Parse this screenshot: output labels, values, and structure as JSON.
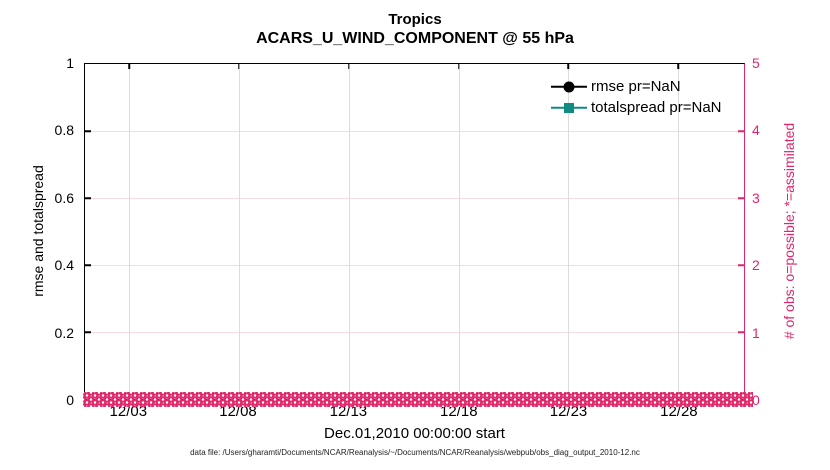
{
  "title": {
    "line1": "Tropics",
    "line2": "ACARS_U_WIND_COMPONENT @ 55 hPa"
  },
  "axes": {
    "left": {
      "label": "rmse and totalspread",
      "ticks": [
        "0",
        "0.2",
        "0.4",
        "0.6",
        "0.8",
        "1"
      ],
      "range": [
        0,
        1
      ],
      "color": "#000000"
    },
    "right": {
      "label": "# of obs: o=possible; *=assimilated",
      "ticks": [
        "0",
        "1",
        "2",
        "3",
        "4",
        "5"
      ],
      "range": [
        0,
        5
      ],
      "color": "#e0256d"
    },
    "x": {
      "label": "Dec.01,2010 00:00:00 start",
      "ticks": [
        "12/03",
        "12/08",
        "12/13",
        "12/18",
        "12/23",
        "12/28"
      ],
      "tick_positions_pct": [
        6.7,
        23.3,
        40.0,
        56.7,
        73.3,
        90.0
      ]
    }
  },
  "legend": [
    {
      "label": "rmse pr=NaN",
      "marker": "circle",
      "color": "#000000"
    },
    {
      "label": "totalspread pr=NaN",
      "marker": "square",
      "color": "#0f8b82"
    }
  ],
  "caption": "data file: /Users/gharamti/Documents/NCAR/Reanalysis/~/Documents/NCAR/Reanalysis/webpub/obs_diag_output_2010-12.nc",
  "colors": {
    "obs_pink": "#e0256d",
    "grid_pink": "#f5dbe6",
    "grid_gray": "#dcdcdc",
    "totalspread_teal": "#0f8b82",
    "rmse_black": "#000000"
  },
  "chart_data": {
    "type": "line",
    "title": "Tropics — ACARS_U_WIND_COMPONENT @ 55 hPa",
    "xlabel": "Dec.01,2010 00:00:00 start",
    "x_ticks": [
      "12/03",
      "12/08",
      "12/13",
      "12/18",
      "12/23",
      "12/28"
    ],
    "left_axis": {
      "label": "rmse and totalspread",
      "range": [
        0,
        1
      ],
      "grid": true
    },
    "right_axis": {
      "label": "# of obs: o=possible; *=assimilated",
      "range": [
        0,
        5
      ],
      "grid": true
    },
    "legend_position": "top-right, no box",
    "series": [
      {
        "name": "rmse pr=NaN",
        "axis": "left",
        "values": "NaN — no curve plotted"
      },
      {
        "name": "totalspread pr=NaN",
        "axis": "left",
        "values": "NaN — no curve plotted"
      }
    ],
    "obs_counts": {
      "possible_o_markers": "dense row of pink 'o' markers at value 0 for every time bin from 12/01 through 12/31",
      "assimilated_markers": "dense row of pink markers at value 0 for every time bin from 12/01 through 12/31"
    }
  }
}
